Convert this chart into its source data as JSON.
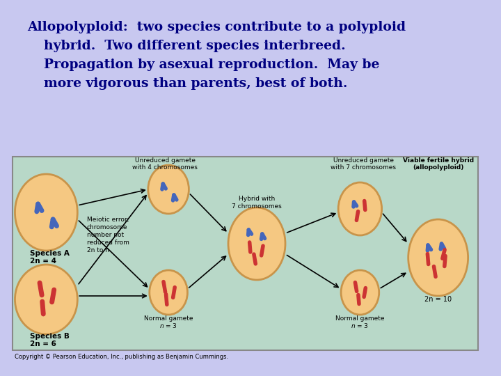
{
  "bg_color": "#c8c8f0",
  "title_lines": [
    "Allopolyploid:  two species contribute to a polyploid",
    "hybrid.  Two different species interbreed.",
    "Propagation by asexual reproduction.  May be",
    "more vigorous than parents, best of both."
  ],
  "title_color": "#000080",
  "title_fontsize": 13.5,
  "diagram_bg": "#b8d8c8",
  "diagram_border": "#888888",
  "cell_color": "#f5c882",
  "cell_edge": "#c8944a",
  "copyright": "Copyright © Pearson Education, Inc., publishing as Benjamin Cummings.",
  "blue_chrom": "#4466bb",
  "red_chrom": "#cc3333"
}
